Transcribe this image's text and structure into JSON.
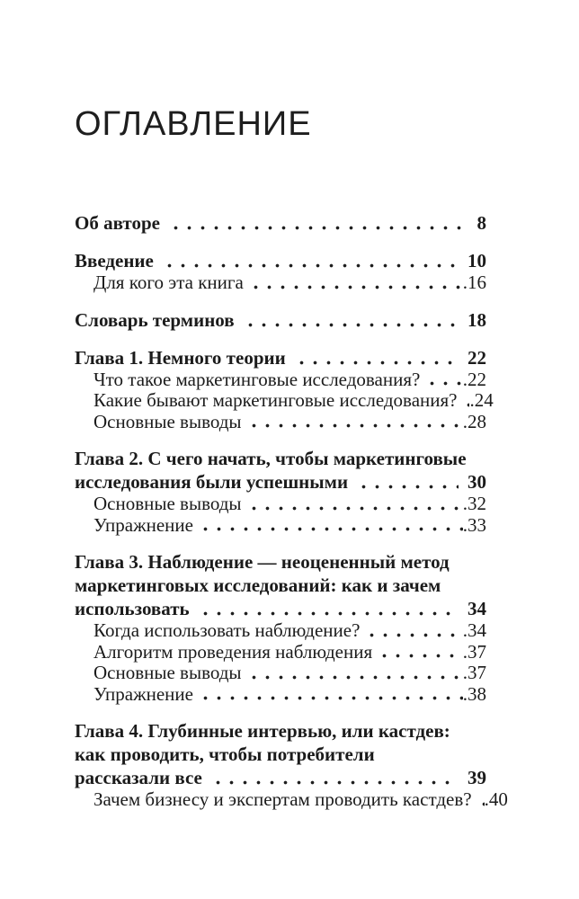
{
  "document": {
    "title": "ОГЛАВЛЕНИЕ",
    "toc": {
      "entries": [
        {
          "level": 0,
          "lines": [
            "Об авторе"
          ],
          "page": "8"
        },
        {
          "level": 0,
          "lines": [
            "Введение"
          ],
          "page": "10"
        },
        {
          "level": 1,
          "lines": [
            "Для кого эта книга"
          ],
          "page": "16"
        },
        {
          "level": 0,
          "lines": [
            "Словарь терминов"
          ],
          "page": "18"
        },
        {
          "level": 0,
          "lines": [
            "Глава 1. Немного теории"
          ],
          "page": "22"
        },
        {
          "level": 1,
          "lines": [
            "Что такое маркетинговые исследования?"
          ],
          "page": "22"
        },
        {
          "level": 1,
          "lines": [
            "Какие бывают маркетинговые исследования?"
          ],
          "page": "24"
        },
        {
          "level": 1,
          "lines": [
            "Основные выводы"
          ],
          "page": "28"
        },
        {
          "level": 0,
          "lines": [
            "Глава 2. С чего начать, чтобы маркетинговые",
            "исследования были успешными"
          ],
          "page": "30"
        },
        {
          "level": 1,
          "lines": [
            "Основные выводы"
          ],
          "page": "32"
        },
        {
          "level": 1,
          "lines": [
            "Упражнение"
          ],
          "page": "33"
        },
        {
          "level": 0,
          "lines": [
            "Глава 3. Наблюдение — неоцененный метод",
            "маркетинговых исследований: как и зачем",
            "использовать"
          ],
          "page": "34"
        },
        {
          "level": 1,
          "lines": [
            "Когда использовать наблюдение?"
          ],
          "page": "34"
        },
        {
          "level": 1,
          "lines": [
            "Алгоритм проведения наблюдения"
          ],
          "page": "37"
        },
        {
          "level": 1,
          "lines": [
            "Основные выводы"
          ],
          "page": "37"
        },
        {
          "level": 1,
          "lines": [
            "Упражнение"
          ],
          "page": "38"
        },
        {
          "level": 0,
          "lines": [
            "Глава 4. Глубинные интервью, или кастдев:",
            "как проводить, чтобы потребители",
            "рассказали все"
          ],
          "page": "39"
        },
        {
          "level": 1,
          "lines": [
            "Зачем бизнесу и экспертам проводить кастдев?"
          ],
          "page": "40"
        }
      ]
    },
    "text_color": "#1b1b1b",
    "background_color": "#ffffff"
  }
}
